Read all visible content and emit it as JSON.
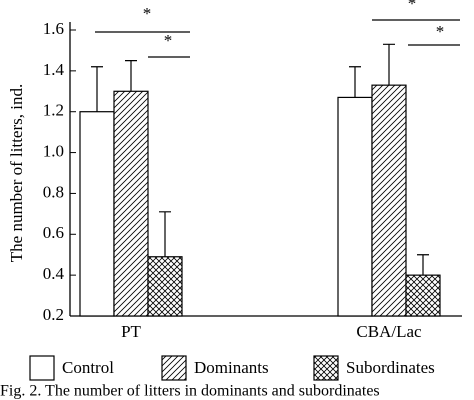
{
  "chart_data": {
    "type": "bar",
    "ylabel": "The number of litters, ind.",
    "categories": [
      "PT",
      "CBA/Lac"
    ],
    "series": [
      {
        "name": "Control",
        "color": "#ffffff",
        "pattern": "none",
        "values": [
          1.2,
          1.27
        ],
        "errors": [
          0.22,
          0.15
        ]
      },
      {
        "name": "Dominants",
        "color": "#ffffff",
        "pattern": "hatch",
        "values": [
          1.3,
          1.33
        ],
        "errors": [
          0.15,
          0.2
        ]
      },
      {
        "name": "Subordinates",
        "color": "#ffffff",
        "pattern": "crosshatch",
        "values": [
          0.49,
          0.4
        ],
        "errors": [
          0.22,
          0.1
        ]
      }
    ],
    "ylim": [
      0.2,
      1.6
    ],
    "yticks": [
      0.2,
      0.4,
      0.6,
      0.8,
      {
        "value": 1,
        "label": "1.0"
      },
      1.2,
      1.4,
      1.6
    ],
    "annotations": [
      "*",
      "*",
      "*",
      "*"
    ],
    "caption": "Fig. 2. The number of litters in dominants and subordinates"
  }
}
